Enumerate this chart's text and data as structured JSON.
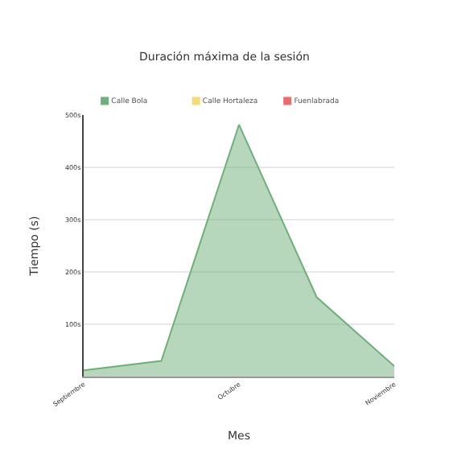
{
  "chart_data": {
    "type": "area",
    "title": "Duración máxima de la sesión",
    "xlabel": "Mes",
    "ylabel": "Tiempo (s)",
    "categories": [
      "Septiembre",
      null,
      "Octubre",
      null,
      "Noviembre"
    ],
    "series": [
      {
        "name": "Calle Bola",
        "color": "#6fb07a",
        "values": [
          12,
          30,
          482,
          152,
          20
        ]
      },
      {
        "name": "Calle Hortaleza",
        "color": "#f5dc6e",
        "values": [
          null,
          null,
          null,
          null,
          null
        ]
      },
      {
        "name": "Fuenlabrada",
        "color": "#f06a6a",
        "values": [
          null,
          null,
          null,
          null,
          null
        ]
      }
    ],
    "ylim": [
      0,
      500
    ],
    "yticks": [
      {
        "value": 100,
        "label": "100s"
      },
      {
        "value": 200,
        "label": "200s"
      },
      {
        "value": 300,
        "label": "300s"
      },
      {
        "value": 400,
        "label": "400s"
      },
      {
        "value": 500,
        "label": "500s"
      }
    ],
    "grid": "y",
    "legend": "top",
    "marker": "none"
  }
}
